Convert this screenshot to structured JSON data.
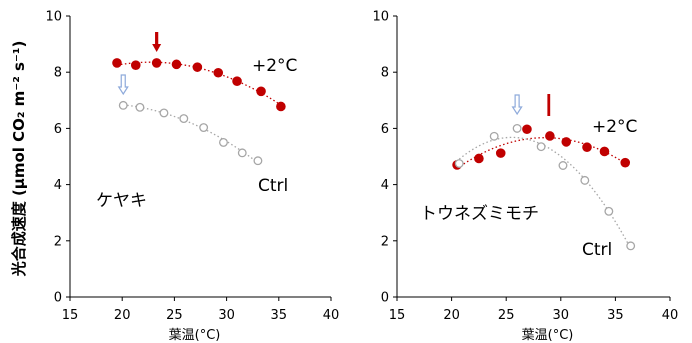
{
  "chart_data": [
    {
      "type": "scatter",
      "panel_label": "ケヤキ",
      "xlabel": "葉温(°C)",
      "ylabel": "光合成速度 (μmol CO₂ m⁻² s⁻¹)",
      "xlim": [
        15,
        40
      ],
      "ylim": [
        0,
        10
      ],
      "xticks": [
        15,
        20,
        25,
        30,
        35,
        40
      ],
      "yticks": [
        0,
        2,
        4,
        6,
        8,
        10
      ],
      "grid": false,
      "series": [
        {
          "name": "+2°C",
          "color": "#c00000",
          "marker": "filled-circle",
          "trend": "dotted-quadratic",
          "x": [
            19.5,
            21.3,
            23.3,
            25.2,
            27.2,
            29.2,
            31.0,
            33.3,
            35.2
          ],
          "y": [
            8.33,
            8.25,
            8.33,
            8.28,
            8.18,
            7.98,
            7.68,
            7.32,
            6.78
          ]
        },
        {
          "name": "Ctrl",
          "color": "#a6a6a6",
          "marker": "open-circle",
          "trend": "dotted-quadratic",
          "x": [
            20.1,
            21.7,
            24.0,
            25.9,
            27.8,
            29.7,
            31.5,
            33.0
          ],
          "y": [
            6.82,
            6.75,
            6.55,
            6.35,
            6.03,
            5.5,
            5.13,
            4.85
          ]
        }
      ],
      "annotations": [
        {
          "type": "arrow-down",
          "x": 23.3,
          "color": "#c00000"
        },
        {
          "type": "arrow-down",
          "x": 20.1,
          "color": "#8eaadb"
        }
      ]
    },
    {
      "type": "scatter",
      "panel_label": "トウネズミモチ",
      "xlabel": "葉温(°C)",
      "xlim": [
        15,
        40
      ],
      "ylim": [
        0,
        10
      ],
      "xticks": [
        15,
        20,
        25,
        30,
        35,
        40
      ],
      "yticks": [
        0,
        2,
        4,
        6,
        8,
        10
      ],
      "grid": false,
      "series": [
        {
          "name": "+2°C",
          "color": "#c00000",
          "marker": "filled-circle",
          "trend": "dotted-quadratic",
          "x": [
            20.5,
            22.5,
            24.5,
            26.9,
            29.0,
            30.5,
            32.4,
            34.0,
            35.9
          ],
          "y": [
            4.7,
            4.93,
            5.12,
            5.97,
            5.73,
            5.52,
            5.33,
            5.18,
            4.78
          ]
        },
        {
          "name": "Ctrl",
          "color": "#a6a6a6",
          "marker": "open-circle",
          "trend": "dotted-quadratic",
          "x": [
            20.7,
            23.9,
            26.0,
            28.2,
            30.2,
            32.2,
            34.4,
            36.4
          ],
          "y": [
            4.75,
            5.72,
            6.0,
            5.35,
            4.68,
            4.15,
            3.05,
            1.82
          ]
        }
      ],
      "annotations": [
        {
          "type": "bar-marker",
          "x": 28.9,
          "color": "#c00000"
        },
        {
          "type": "arrow-down",
          "x": 26.0,
          "color": "#8eaadb"
        }
      ]
    }
  ]
}
